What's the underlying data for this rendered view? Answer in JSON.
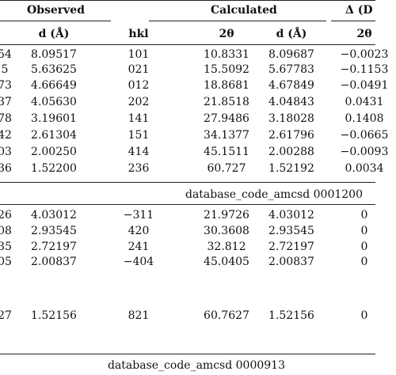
{
  "header": {
    "observed": "Observed",
    "calculated": "Calculated",
    "delta": "Δ (D",
    "sub": {
      "obs_d": "d (Å)",
      "hkl": "hkl",
      "two_theta": "2θ",
      "calc_d": "d (Å)",
      "delta_2theta": "2θ"
    }
  },
  "block1": {
    "rows": [
      {
        "obs2t": "54",
        "obsd": "8.09517",
        "hkl": "101",
        "calc2t": "10.8331",
        "calcd": "8.09687",
        "delta": "−0.0023"
      },
      {
        "obs2t": "5",
        "obsd": "5.63625",
        "hkl": "021",
        "calc2t": "15.5092",
        "calcd": "5.67783",
        "delta": "−0.1153"
      },
      {
        "obs2t": "73",
        "obsd": "4.66649",
        "hkl": "012",
        "calc2t": "18.8681",
        "calcd": "4.67849",
        "delta": "−0.0491"
      },
      {
        "obs2t": "37",
        "obsd": "4.05630",
        "hkl": "202",
        "calc2t": "21.8518",
        "calcd": "4.04843",
        "delta": "0.0431"
      },
      {
        "obs2t": "78",
        "obsd": "3.19601",
        "hkl": "141",
        "calc2t": "27.9486",
        "calcd": "3.18028",
        "delta": "0.1408"
      },
      {
        "obs2t": "42",
        "obsd": "2.61304",
        "hkl": "151",
        "calc2t": "34.1377",
        "calcd": "2.61796",
        "delta": "−0.0665"
      },
      {
        "obs2t": "03",
        "obsd": "2.00250",
        "hkl": "414",
        "calc2t": "45.1511",
        "calcd": "2.00288",
        "delta": "−0.0093"
      },
      {
        "obs2t": "36",
        "obsd": "1.52200",
        "hkl": "236",
        "calc2t": "60.727",
        "calcd": "1.52192",
        "delta": "0.0034"
      }
    ],
    "db_label": "database_code_amcsd 0001200"
  },
  "block2": {
    "rows": [
      {
        "obs2t": "26",
        "obsd": "4.03012",
        "hkl": "−311",
        "calc2t": "21.9726",
        "calcd": "4.03012",
        "delta": "0"
      },
      {
        "obs2t": "08",
        "obsd": "2.93545",
        "hkl": "420",
        "calc2t": "30.3608",
        "calcd": "2.93545",
        "delta": "0"
      },
      {
        "obs2t": "35",
        "obsd": "2.72197",
        "hkl": "241",
        "calc2t": "32.812",
        "calcd": "2.72197",
        "delta": "0"
      },
      {
        "obs2t": "05",
        "obsd": "2.00837",
        "hkl": "−404",
        "calc2t": "45.0405",
        "calcd": "2.00837",
        "delta": "0"
      },
      {
        "obs2t": "27",
        "obsd": "1.52156",
        "hkl": "821",
        "calc2t": "60.7627",
        "calcd": "1.52156",
        "delta": "0"
      }
    ],
    "db_label": "database_code_amcsd 0000913"
  }
}
